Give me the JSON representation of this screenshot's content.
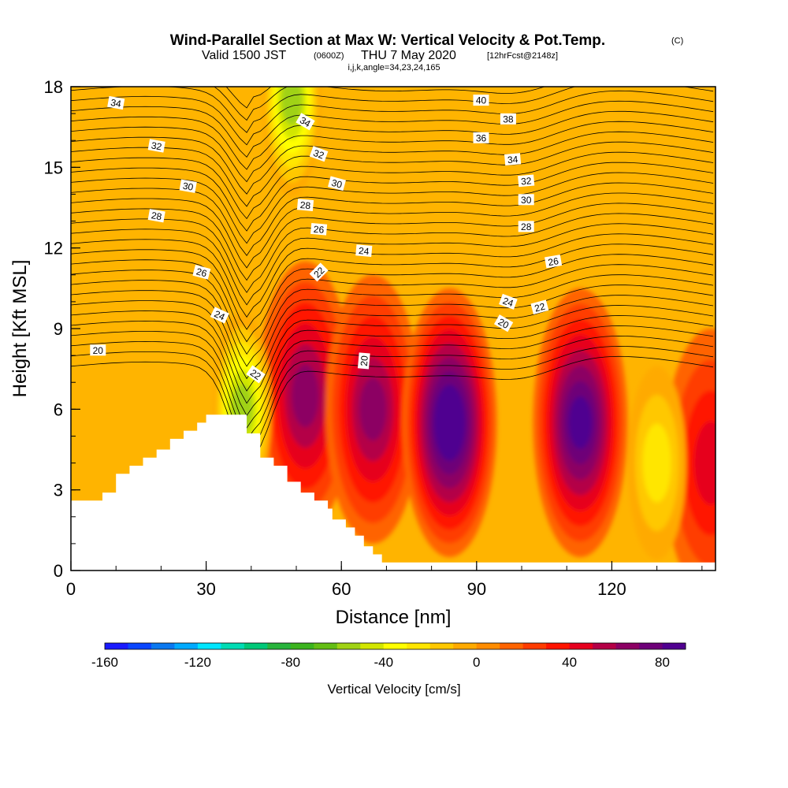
{
  "title": {
    "main": "Wind-Parallel Section at Max W: Vertical Velocity & Pot.Temp.",
    "copyright": "(C)",
    "valid_prefix": "Valid 1500 JST",
    "valid_utc": "(0600Z)",
    "valid_date": "THU 7 May 2020",
    "forecast": "[12hrFcst@2148z]",
    "indices": "i,j,k,angle=34,23,24,165"
  },
  "chart_data": {
    "type": "heatmap",
    "xlabel": "Distance [nm]",
    "ylabel": "Height [Kft MSL]",
    "xlim": [
      0,
      143
    ],
    "ylim": [
      0,
      18
    ],
    "x_ticks": [
      "0",
      "30",
      "60",
      "90",
      "120"
    ],
    "y_ticks": [
      "0",
      "3",
      "6",
      "9",
      "12",
      "15",
      "18"
    ],
    "x_tick_values": [
      0,
      30,
      60,
      90,
      120
    ],
    "y_tick_values": [
      0,
      3,
      6,
      9,
      12,
      15,
      18
    ],
    "colorbar": {
      "label": "Vertical Velocity [cm/s]",
      "min": -160,
      "max": 90,
      "step": 10,
      "tick_labels": [
        "-160",
        "-120",
        "-80",
        "-40",
        "0",
        "40",
        "80"
      ],
      "tick_values": [
        -160,
        -120,
        -80,
        -40,
        0,
        40,
        80
      ],
      "colors": [
        "#1a1aff",
        "#0a46ff",
        "#0a78f0",
        "#00aaff",
        "#00e6ff",
        "#00dcb4",
        "#00c878",
        "#28b43c",
        "#3cb41e",
        "#64be14",
        "#a0d214",
        "#d2e600",
        "#ffff00",
        "#ffe600",
        "#ffc800",
        "#ffaa00",
        "#ff8c00",
        "#ff6400",
        "#ff3c00",
        "#ff1400",
        "#e6001e",
        "#b40046",
        "#8c0064",
        "#6e0078",
        "#500090"
      ]
    },
    "velocity_cores": [
      {
        "x": 52,
        "y": 6.5,
        "w": 60
      },
      {
        "x": 67,
        "y": 6.0,
        "w": 55
      },
      {
        "x": 84,
        "y": 5.5,
        "w": 90
      },
      {
        "x": 113,
        "y": 5.5,
        "w": 80
      },
      {
        "x": 142,
        "y": 4.0,
        "w": 40
      }
    ],
    "downdraft_cores": [
      {
        "x": 49,
        "y": 17.5,
        "w": -60
      },
      {
        "x": 38,
        "y": 6.0,
        "w": -55
      },
      {
        "x": 130,
        "y": 4.0,
        "w": -30
      }
    ],
    "terrain": [
      [
        0,
        2.6
      ],
      [
        7,
        2.6
      ],
      [
        7,
        2.9
      ],
      [
        10,
        2.9
      ],
      [
        10,
        3.6
      ],
      [
        13,
        3.6
      ],
      [
        13,
        3.9
      ],
      [
        16,
        3.9
      ],
      [
        16,
        4.2
      ],
      [
        19,
        4.2
      ],
      [
        19,
        4.5
      ],
      [
        22,
        4.5
      ],
      [
        22,
        4.9
      ],
      [
        25,
        4.9
      ],
      [
        25,
        5.2
      ],
      [
        28,
        5.2
      ],
      [
        28,
        5.5
      ],
      [
        30,
        5.5
      ],
      [
        30,
        5.8
      ],
      [
        39,
        5.8
      ],
      [
        39,
        5.1
      ],
      [
        42,
        5.1
      ],
      [
        42,
        4.2
      ],
      [
        45,
        4.2
      ],
      [
        45,
        3.9
      ],
      [
        48,
        3.9
      ],
      [
        48,
        3.3
      ],
      [
        51,
        3.3
      ],
      [
        51,
        2.9
      ],
      [
        54,
        2.9
      ],
      [
        54,
        2.6
      ],
      [
        57,
        2.6
      ],
      [
        57,
        2.3
      ],
      [
        58,
        2.3
      ],
      [
        58,
        1.9
      ],
      [
        61,
        1.9
      ],
      [
        61,
        1.6
      ],
      [
        63,
        1.6
      ],
      [
        63,
        1.3
      ],
      [
        65,
        1.3
      ],
      [
        65,
        0.9
      ],
      [
        67,
        0.9
      ],
      [
        67,
        0.6
      ],
      [
        69,
        0.6
      ],
      [
        69,
        0.3
      ],
      [
        143,
        0.3
      ],
      [
        143,
        0
      ],
      [
        0,
        0
      ]
    ],
    "contour_labels": [
      {
        "text": "34",
        "x": 10,
        "y": 17.4,
        "angle": 10
      },
      {
        "text": "32",
        "x": 19,
        "y": 15.8,
        "angle": 10
      },
      {
        "text": "30",
        "x": 26,
        "y": 14.3,
        "angle": 10
      },
      {
        "text": "28",
        "x": 19,
        "y": 13.2,
        "angle": 10
      },
      {
        "text": "26",
        "x": 29,
        "y": 11.1,
        "angle": 15
      },
      {
        "text": "24",
        "x": 33,
        "y": 9.5,
        "angle": 25
      },
      {
        "text": "20",
        "x": 6,
        "y": 8.2,
        "angle": 0
      },
      {
        "text": "22",
        "x": 41,
        "y": 7.3,
        "angle": 35
      },
      {
        "text": "34",
        "x": 52,
        "y": 16.7,
        "angle": 30
      },
      {
        "text": "32",
        "x": 55,
        "y": 15.5,
        "angle": 20
      },
      {
        "text": "30",
        "x": 59,
        "y": 14.4,
        "angle": 15
      },
      {
        "text": "28",
        "x": 52,
        "y": 13.6,
        "angle": 5
      },
      {
        "text": "26",
        "x": 55,
        "y": 12.7,
        "angle": 5
      },
      {
        "text": "24",
        "x": 65,
        "y": 11.9,
        "angle": 5
      },
      {
        "text": "22",
        "x": 55,
        "y": 11.1,
        "angle": -45
      },
      {
        "text": "20",
        "x": 65,
        "y": 7.8,
        "angle": -85
      },
      {
        "text": "40",
        "x": 91,
        "y": 17.5,
        "angle": 0
      },
      {
        "text": "38",
        "x": 97,
        "y": 16.8,
        "angle": 0
      },
      {
        "text": "36",
        "x": 91,
        "y": 16.1,
        "angle": 0
      },
      {
        "text": "34",
        "x": 98,
        "y": 15.3,
        "angle": -5
      },
      {
        "text": "32",
        "x": 101,
        "y": 14.5,
        "angle": -5
      },
      {
        "text": "30",
        "x": 101,
        "y": 13.8,
        "angle": 0
      },
      {
        "text": "28",
        "x": 101,
        "y": 12.8,
        "angle": 0
      },
      {
        "text": "26",
        "x": 107,
        "y": 11.5,
        "angle": -10
      },
      {
        "text": "24",
        "x": 97,
        "y": 10.0,
        "angle": 20
      },
      {
        "text": "22",
        "x": 104,
        "y": 9.8,
        "angle": -15
      },
      {
        "text": "20",
        "x": 96,
        "y": 9.2,
        "angle": 30
      }
    ]
  }
}
